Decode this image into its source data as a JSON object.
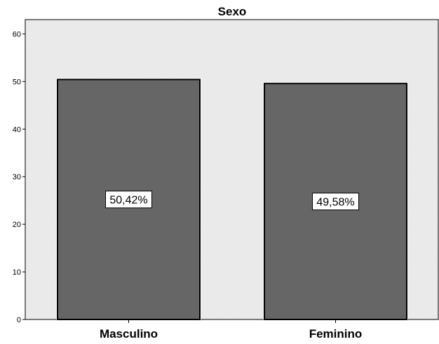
{
  "chart_data": {
    "type": "bar",
    "title": "Sexo",
    "xlabel": "",
    "ylabel": "",
    "categories": [
      "Masculino",
      "Feminino"
    ],
    "values": [
      50.42,
      49.58
    ],
    "data_labels": [
      "50,42%",
      "49,58%"
    ],
    "ylim": [
      0,
      63
    ],
    "yticks": [
      0,
      10,
      20,
      30,
      40,
      50,
      60
    ],
    "grid": false,
    "legend": "none",
    "colors": {
      "plot_background": "#ececec",
      "bar_fill": "#666666",
      "bar_stroke": "#000000",
      "label_box": "#ffffff"
    }
  }
}
